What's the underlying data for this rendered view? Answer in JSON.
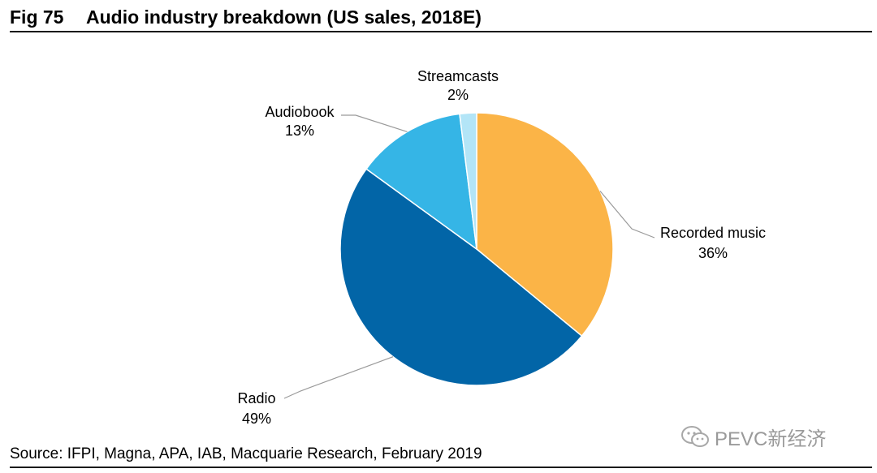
{
  "header": {
    "fig_number": "Fig 75",
    "title": "Audio industry breakdown (US sales, 2018E)"
  },
  "chart_data": {
    "type": "pie",
    "title": "Audio industry breakdown (US sales, 2018E)",
    "start_angle_deg": 0,
    "direction": "clockwise",
    "slices": [
      {
        "name": "Recorded music",
        "label": "Recorded music",
        "value": 36,
        "pct_label": "36%",
        "color": "#FBB447"
      },
      {
        "name": "Radio",
        "label": "Radio",
        "value": 49,
        "pct_label": "49%",
        "color": "#0265A7"
      },
      {
        "name": "Audiobook",
        "label": "Audiobook",
        "value": 13,
        "pct_label": "13%",
        "color": "#35B5E6"
      },
      {
        "name": "Streamcasts",
        "label": "Streamcasts",
        "value": 2,
        "pct_label": "2%",
        "color": "#B3E5F7"
      }
    ]
  },
  "footer": {
    "source": "Source: IFPI, Magna, APA, IAB, Macquarie Research, February 2019"
  },
  "watermark": {
    "text": "PEVC新经济",
    "icon": "wechat-icon"
  }
}
